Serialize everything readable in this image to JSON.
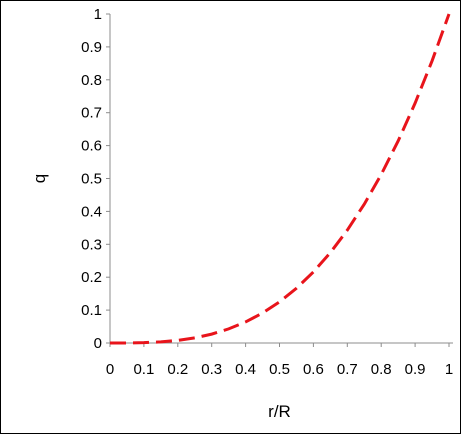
{
  "chart_data": {
    "type": "line",
    "title": "",
    "xlabel": "r/R",
    "ylabel": "q",
    "xlim": [
      0,
      1
    ],
    "ylim": [
      0,
      1
    ],
    "x_ticks": [
      "0",
      "0.1",
      "0.2",
      "0.3",
      "0.4",
      "0.5",
      "0.6",
      "0.7",
      "0.8",
      "0.9",
      "1"
    ],
    "y_ticks": [
      "0",
      "0.1",
      "0.2",
      "0.3",
      "0.4",
      "0.5",
      "0.6",
      "0.7",
      "0.8",
      "0.9",
      "1"
    ],
    "grid": false,
    "legend": "none",
    "series": [
      {
        "style": "dashed",
        "color": "#e8141b",
        "x": [
          0,
          0.05,
          0.1,
          0.15,
          0.2,
          0.25,
          0.3,
          0.35,
          0.4,
          0.45,
          0.5,
          0.55,
          0.6,
          0.65,
          0.7,
          0.75,
          0.8,
          0.85,
          0.9,
          0.95,
          1
        ],
        "y": [
          0,
          0.0001,
          0.001,
          0.0034,
          0.008,
          0.0156,
          0.027,
          0.0429,
          0.064,
          0.0911,
          0.125,
          0.1664,
          0.216,
          0.2746,
          0.343,
          0.4219,
          0.512,
          0.6141,
          0.729,
          0.8574,
          1
        ]
      }
    ]
  }
}
